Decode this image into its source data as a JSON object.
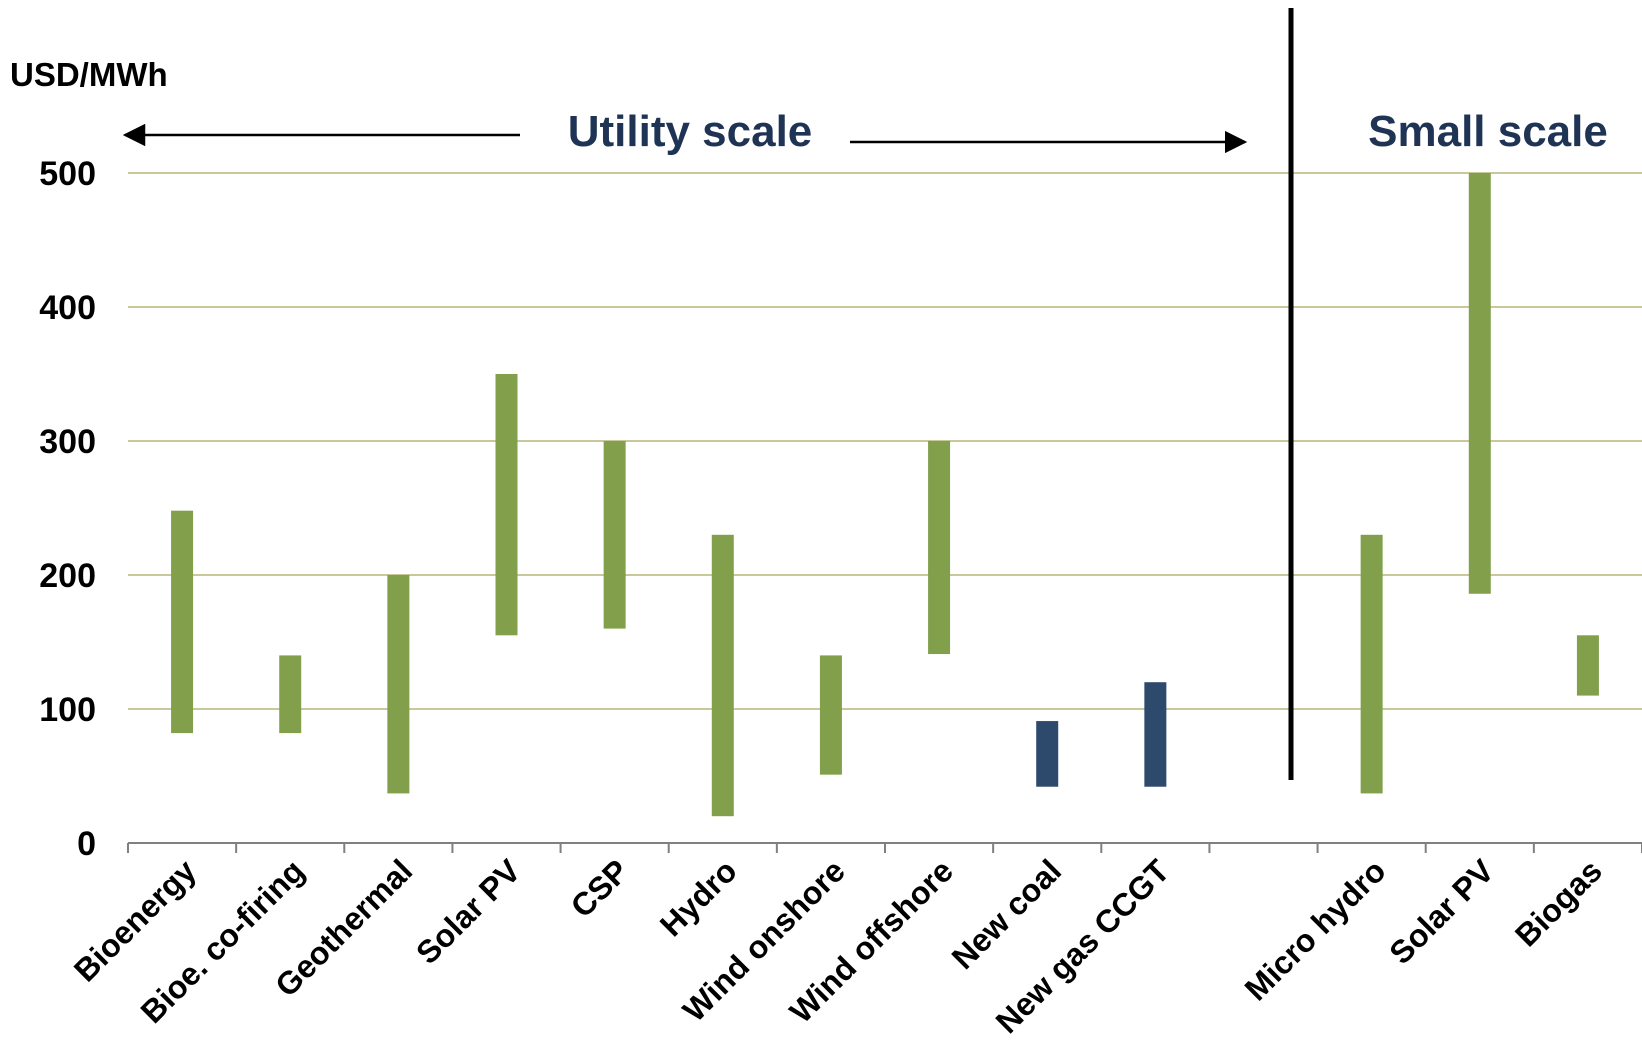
{
  "chart_data": {
    "type": "bar",
    "subtype": "floating-range",
    "ylabel": "USD/MWh",
    "ylim": [
      0,
      500
    ],
    "yticks": [
      "0",
      "100",
      "200",
      "300",
      "400",
      "500"
    ],
    "grid": true,
    "colors": {
      "renewable": "#82a04c",
      "conventional": "#2d4a6c",
      "gridline": "#c8c89a",
      "annotation": "#1f3455"
    },
    "annotations": {
      "utility_scale": "Utility scale",
      "small_scale": "Small scale"
    },
    "categories": [
      "Bioenergy",
      "Bioe. co-firing",
      "Geothermal",
      "Solar PV",
      "CSP",
      "Hydro",
      "Wind onshore",
      "Wind offshore",
      "New coal",
      "New gas CCGT",
      "",
      "Micro hydro",
      "Solar PV",
      "Biogas"
    ],
    "series": [
      {
        "ranges": [
          {
            "low": 82,
            "high": 248,
            "group": "renewable"
          },
          {
            "low": 82,
            "high": 140,
            "group": "renewable"
          },
          {
            "low": 37,
            "high": 200,
            "group": "renewable"
          },
          {
            "low": 155,
            "high": 350,
            "group": "renewable"
          },
          {
            "low": 160,
            "high": 300,
            "group": "renewable"
          },
          {
            "low": 20,
            "high": 230,
            "group": "renewable"
          },
          {
            "low": 51,
            "high": 140,
            "group": "renewable"
          },
          {
            "low": 141,
            "high": 300,
            "group": "renewable"
          },
          {
            "low": 42,
            "high": 91,
            "group": "conventional"
          },
          {
            "low": 42,
            "high": 120,
            "group": "conventional"
          },
          null,
          {
            "low": 37,
            "high": 230,
            "group": "renewable"
          },
          {
            "low": 186,
            "high": 500,
            "group": "renewable"
          },
          {
            "low": 110,
            "high": 155,
            "group": "renewable"
          }
        ]
      }
    ]
  }
}
